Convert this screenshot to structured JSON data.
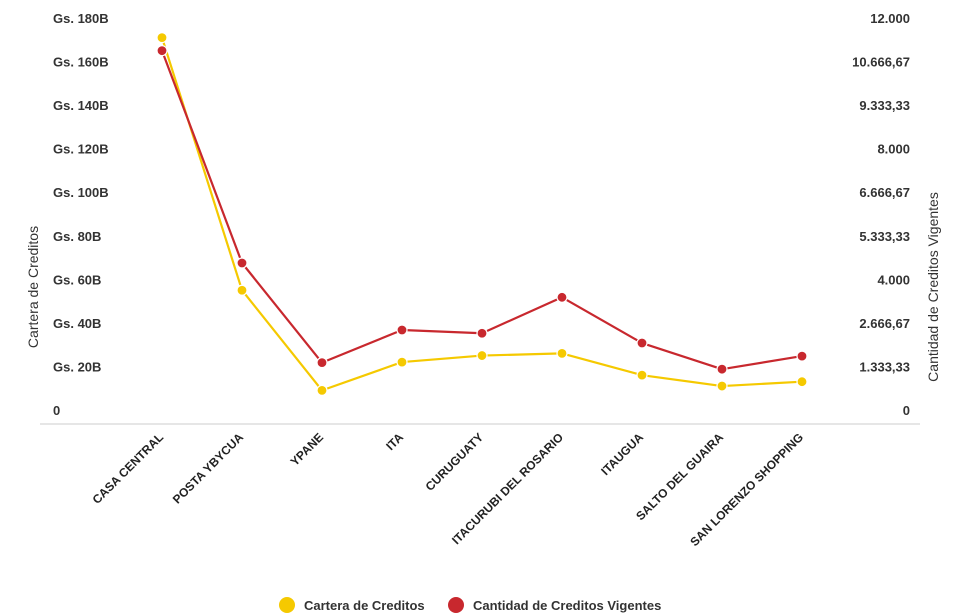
{
  "chart_data": {
    "type": "line",
    "categories": [
      "CASA CENTRAL",
      "POSTA YBYCUA",
      "YPANE",
      "ITA",
      "CURUGUATY",
      "ITACURUBI DEL ROSARIO",
      "ITAUGUA",
      "SALTO DEL GUAIRA",
      "SAN LORENZO SHOPPING"
    ],
    "series": [
      {
        "name": "Cartera de Creditos",
        "axis": "left",
        "color": "#F5C900",
        "values": [
          171,
          55,
          9,
          22,
          25,
          26,
          16,
          11,
          13
        ]
      },
      {
        "name": "Cantidad de Creditos Vigentes",
        "axis": "right",
        "color": "#C8282E",
        "values": [
          11000,
          4500,
          1450,
          2450,
          2350,
          3450,
          2050,
          1250,
          1650
        ]
      }
    ],
    "y_left": {
      "label": "Cartera de Creditos",
      "range": [
        0,
        180
      ],
      "ticks": [
        "0",
        "Gs. 20B",
        "Gs. 40B",
        "Gs. 60B",
        "Gs. 80B",
        "Gs. 100B",
        "Gs. 120B",
        "Gs. 140B",
        "Gs. 160B",
        "Gs. 180B"
      ]
    },
    "y_right": {
      "label": "Cantidad de Creditos Vigentes",
      "range": [
        0,
        12000
      ],
      "ticks": [
        "0",
        "1.333,33",
        "2.666,67",
        "4.000",
        "5.333,33",
        "6.666,67",
        "8.000",
        "9.333,33",
        "10.666,67",
        "12.000"
      ]
    },
    "grid": false,
    "legend": "bottom-center"
  }
}
